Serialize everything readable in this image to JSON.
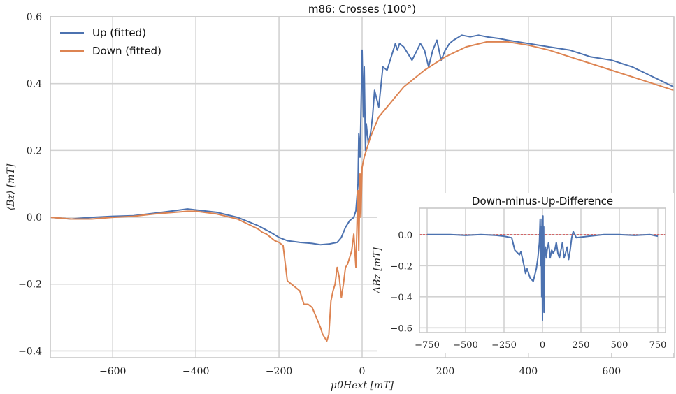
{
  "chart_data": [
    {
      "type": "line",
      "title": "m86: Crosses (100°)",
      "xlabel": "μ0Hext [mT]",
      "ylabel": "⟨Bz⟩ [mT]",
      "xlim": [
        -750,
        750
      ],
      "ylim": [
        -0.42,
        0.6
      ],
      "xticks": [
        -600,
        -400,
        -200,
        0,
        200,
        400,
        600
      ],
      "xtick_labels": [
        "−600",
        "−400",
        "−200",
        "0",
        "200",
        "400",
        "600"
      ],
      "yticks": [
        -0.4,
        -0.2,
        0.0,
        0.2,
        0.4,
        0.6
      ],
      "ytick_labels": [
        "−0.4",
        "−0.2",
        "0.0",
        "0.2",
        "0.4",
        "0.6"
      ],
      "grid": true,
      "legend_position": "top-left",
      "series": [
        {
          "name": "Up (fitted)",
          "color": "#4c72b0",
          "x": [
            -750,
            -700,
            -650,
            -600,
            -550,
            -500,
            -450,
            -420,
            -400,
            -350,
            -300,
            -250,
            -220,
            -200,
            -180,
            -150,
            -120,
            -100,
            -80,
            -60,
            -50,
            -40,
            -30,
            -20,
            -15,
            -10,
            -8,
            -5,
            -3,
            0,
            3,
            5,
            8,
            10,
            15,
            20,
            25,
            30,
            40,
            50,
            60,
            70,
            80,
            85,
            90,
            100,
            120,
            140,
            150,
            160,
            170,
            180,
            190,
            200,
            210,
            220,
            240,
            260,
            280,
            300,
            330,
            350,
            400,
            450,
            500,
            550,
            600,
            650,
            700,
            750
          ],
          "y": [
            0.0,
            -0.005,
            0.0,
            0.003,
            0.005,
            0.012,
            0.02,
            0.025,
            0.022,
            0.015,
            0.0,
            -0.025,
            -0.045,
            -0.06,
            -0.07,
            -0.075,
            -0.078,
            -0.082,
            -0.08,
            -0.075,
            -0.06,
            -0.03,
            -0.01,
            0.0,
            0.02,
            0.1,
            0.25,
            0.18,
            0.3,
            0.5,
            0.3,
            0.45,
            0.2,
            0.28,
            0.22,
            0.25,
            0.3,
            0.38,
            0.33,
            0.45,
            0.44,
            0.48,
            0.52,
            0.5,
            0.52,
            0.51,
            0.47,
            0.52,
            0.5,
            0.45,
            0.5,
            0.53,
            0.47,
            0.5,
            0.52,
            0.53,
            0.545,
            0.54,
            0.545,
            0.54,
            0.535,
            0.53,
            0.52,
            0.51,
            0.5,
            0.48,
            0.47,
            0.45,
            0.42,
            0.39
          ]
        },
        {
          "name": "Down (fitted)",
          "color": "#dd8452",
          "x": [
            -750,
            -700,
            -650,
            -600,
            -550,
            -500,
            -450,
            -420,
            -400,
            -350,
            -300,
            -250,
            -240,
            -230,
            -220,
            -210,
            -200,
            -190,
            -180,
            -170,
            -160,
            -150,
            -140,
            -130,
            -120,
            -110,
            -100,
            -95,
            -90,
            -85,
            -80,
            -75,
            -70,
            -65,
            -60,
            -55,
            -50,
            -45,
            -40,
            -35,
            -30,
            -25,
            -20,
            -15,
            -12,
            -10,
            -8,
            -5,
            -3,
            0,
            5,
            10,
            15,
            20,
            30,
            40,
            60,
            80,
            100,
            150,
            200,
            250,
            300,
            350,
            400,
            450,
            500,
            550,
            600,
            650,
            700,
            750
          ],
          "y": [
            0.0,
            -0.005,
            -0.005,
            0.0,
            0.003,
            0.01,
            0.015,
            0.018,
            0.018,
            0.01,
            -0.005,
            -0.035,
            -0.045,
            -0.05,
            -0.06,
            -0.07,
            -0.075,
            -0.085,
            -0.19,
            -0.2,
            -0.21,
            -0.22,
            -0.26,
            -0.26,
            -0.27,
            -0.3,
            -0.33,
            -0.35,
            -0.36,
            -0.37,
            -0.35,
            -0.25,
            -0.22,
            -0.2,
            -0.15,
            -0.18,
            -0.24,
            -0.2,
            -0.15,
            -0.14,
            -0.12,
            -0.1,
            -0.05,
            -0.15,
            0.0,
            0.08,
            -0.1,
            0.13,
            0.0,
            0.15,
            0.18,
            0.2,
            0.22,
            0.24,
            0.27,
            0.3,
            0.33,
            0.36,
            0.39,
            0.44,
            0.48,
            0.51,
            0.525,
            0.525,
            0.515,
            0.5,
            0.48,
            0.46,
            0.44,
            0.42,
            0.4,
            0.38
          ]
        }
      ]
    },
    {
      "type": "line",
      "title": "Down-minus-Up-Difference",
      "xlabel": "",
      "ylabel": "ΔBz [mT]",
      "xlim": [
        -800,
        800
      ],
      "ylim": [
        -0.63,
        0.17
      ],
      "xticks": [
        -750,
        -500,
        -250,
        0,
        250,
        500,
        750
      ],
      "xtick_labels": [
        "−750",
        "−500",
        "−250",
        "0",
        "250",
        "500",
        "750"
      ],
      "yticks": [
        -0.6,
        -0.4,
        -0.2,
        0.0
      ],
      "ytick_labels": [
        "−0.6",
        "−0.4",
        "−0.2",
        "0.0"
      ],
      "grid": true,
      "reference_line": {
        "y": 0.0,
        "color": "#d62728",
        "style": "dashed"
      },
      "series": [
        {
          "color": "#4c72b0",
          "x": [
            -750,
            -700,
            -600,
            -500,
            -400,
            -300,
            -250,
            -200,
            -180,
            -160,
            -150,
            -140,
            -120,
            -110,
            -100,
            -80,
            -60,
            -40,
            -30,
            -20,
            -15,
            -10,
            -8,
            -5,
            -3,
            0,
            3,
            5,
            8,
            10,
            15,
            20,
            25,
            30,
            40,
            50,
            60,
            70,
            80,
            90,
            100,
            110,
            120,
            130,
            140,
            150,
            160,
            170,
            180,
            190,
            200,
            210,
            220,
            300,
            400,
            500,
            600,
            700,
            750
          ],
          "y": [
            0.0,
            0.0,
            0.0,
            -0.005,
            0.0,
            -0.005,
            -0.01,
            -0.02,
            -0.1,
            -0.12,
            -0.13,
            -0.11,
            -0.2,
            -0.25,
            -0.22,
            -0.28,
            -0.3,
            -0.22,
            -0.15,
            -0.05,
            0.1,
            -0.2,
            0.05,
            -0.4,
            0.1,
            -0.55,
            0.12,
            -0.3,
            0.05,
            -0.5,
            -0.1,
            -0.08,
            -0.15,
            -0.1,
            -0.05,
            -0.15,
            -0.1,
            -0.12,
            -0.1,
            -0.05,
            -0.12,
            -0.15,
            -0.1,
            -0.05,
            -0.15,
            -0.12,
            -0.08,
            -0.16,
            -0.1,
            -0.02,
            0.02,
            0.0,
            -0.02,
            -0.01,
            0.0,
            0.0,
            -0.005,
            0.0,
            -0.01
          ]
        }
      ]
    }
  ],
  "legend": {
    "up_label": "Up (fitted)",
    "down_label": "Down (fitted)"
  }
}
